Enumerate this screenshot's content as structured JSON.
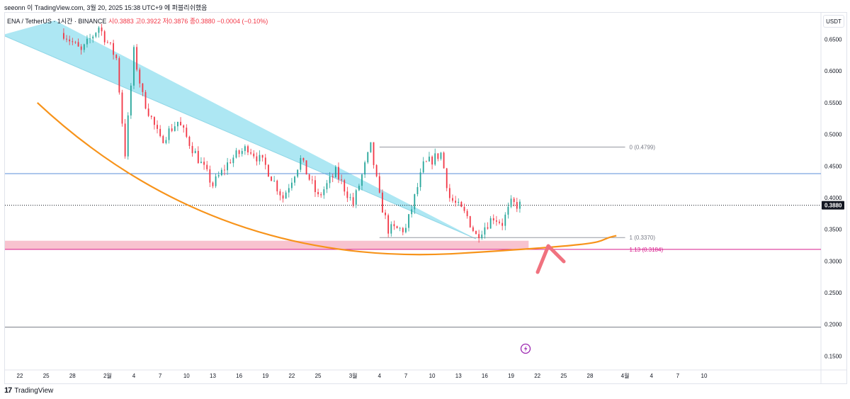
{
  "header": {
    "published_by": "seeonn 이 TradingView.com, 3월 20, 2025 15:38 UTC+9 에 퍼블리쉬했음"
  },
  "legend": {
    "symbol": "ENA / TetherUS · 1시간 · BINANCE",
    "ohlc": "시0.3883 고0.3922 저0.3876 종0.3880 −0.0004 (−0.10%)"
  },
  "currency": "USDT",
  "footer": {
    "brand": "TradingView",
    "logo": "17"
  },
  "colors": {
    "up": "#26a69a",
    "down": "#f23645",
    "wedge": "#a9e6f2",
    "curve": "#f7931a",
    "support_zone": "#f7b8c7",
    "hline_blue": "#5b8fd9",
    "fib_magenta": "#d81b8c",
    "arrow": "#f0727f"
  },
  "chart_data": {
    "type": "candlestick",
    "symbol": "ENA/USDT",
    "timeframe": "1h",
    "x_tick_labels": [
      "22",
      "25",
      "28",
      "2월",
      "4",
      "7",
      "10",
      "13",
      "16",
      "19",
      "22",
      "25",
      "3월",
      "4",
      "7",
      "10",
      "13",
      "16",
      "19",
      "22",
      "25",
      "28",
      "4월",
      "4",
      "7",
      "10"
    ],
    "y_ticks": [
      0.65,
      0.6,
      0.55,
      0.5,
      0.45,
      0.4,
      0.35,
      0.3,
      0.25,
      0.2,
      0.15
    ],
    "y_tick_labels": [
      "0.6500",
      "0.6000",
      "0.5500",
      "0.5000",
      "0.4500",
      "0.4000",
      "0.3500",
      "0.3000",
      "0.2500",
      "0.2000",
      "0.1500"
    ],
    "ylim": [
      0.128,
      0.692
    ],
    "last_price": 0.388,
    "last_price_label": "0.3880",
    "price_path": [
      [
        "2025-01-27",
        0.66
      ],
      [
        "2025-01-29",
        0.63
      ],
      [
        "2025-01-31",
        0.67
      ],
      [
        "2025-02-02",
        0.62
      ],
      [
        "2025-02-03",
        0.47
      ],
      [
        "2025-02-04",
        0.63
      ],
      [
        "2025-02-05",
        0.56
      ],
      [
        "2025-02-07",
        0.49
      ],
      [
        "2025-02-09",
        0.52
      ],
      [
        "2025-02-11",
        0.47
      ],
      [
        "2025-02-13",
        0.42
      ],
      [
        "2025-02-15",
        0.46
      ],
      [
        "2025-02-17",
        0.48
      ],
      [
        "2025-02-19",
        0.45
      ],
      [
        "2025-02-21",
        0.4
      ],
      [
        "2025-02-23",
        0.46
      ],
      [
        "2025-02-25",
        0.4
      ],
      [
        "2025-02-27",
        0.44
      ],
      [
        "2025-03-01",
        0.39
      ],
      [
        "2025-03-03",
        0.48
      ],
      [
        "2025-03-04",
        0.4
      ],
      [
        "2025-03-05",
        0.35
      ],
      [
        "2025-03-07",
        0.35
      ],
      [
        "2025-03-08",
        0.4
      ],
      [
        "2025-03-09",
        0.45
      ],
      [
        "2025-03-11",
        0.47
      ],
      [
        "2025-03-12",
        0.4
      ],
      [
        "2025-03-14",
        0.37
      ],
      [
        "2025-03-15",
        0.34
      ],
      [
        "2025-03-17",
        0.37
      ],
      [
        "2025-03-18",
        0.36
      ],
      [
        "2025-03-19",
        0.39
      ],
      [
        "2025-03-20",
        0.388
      ]
    ],
    "horizontal_lines": [
      {
        "price": 0.438,
        "style": "solid",
        "color": "#5b8fd9"
      },
      {
        "price": 0.388,
        "style": "dotted",
        "color": "#131722"
      },
      {
        "price": 0.1955,
        "style": "solid",
        "color": "#787b86"
      }
    ],
    "fib_levels": [
      {
        "label": "0 (0.4799)",
        "price": 0.4799
      },
      {
        "label": "1 (0.3370)",
        "price": 0.337
      },
      {
        "label": "1.13 (0.3184)",
        "price": 0.3184
      }
    ],
    "support_zone": [
      0.318,
      0.332
    ],
    "wedge": {
      "upper": [
        [
          "2025-01-26",
          0.68
        ],
        [
          "2025-03-15",
          0.335
        ]
      ],
      "lower": [
        [
          "2025-01-20",
          0.657
        ],
        [
          "2025-03-15",
          0.335
        ]
      ]
    },
    "arc": [
      [
        "2025-01-24",
        0.55
      ],
      [
        "2025-02-12",
        0.384
      ],
      [
        "2025-03-13",
        0.312
      ],
      [
        "2025-03-31",
        0.34
      ]
    ],
    "arrow": "up"
  }
}
